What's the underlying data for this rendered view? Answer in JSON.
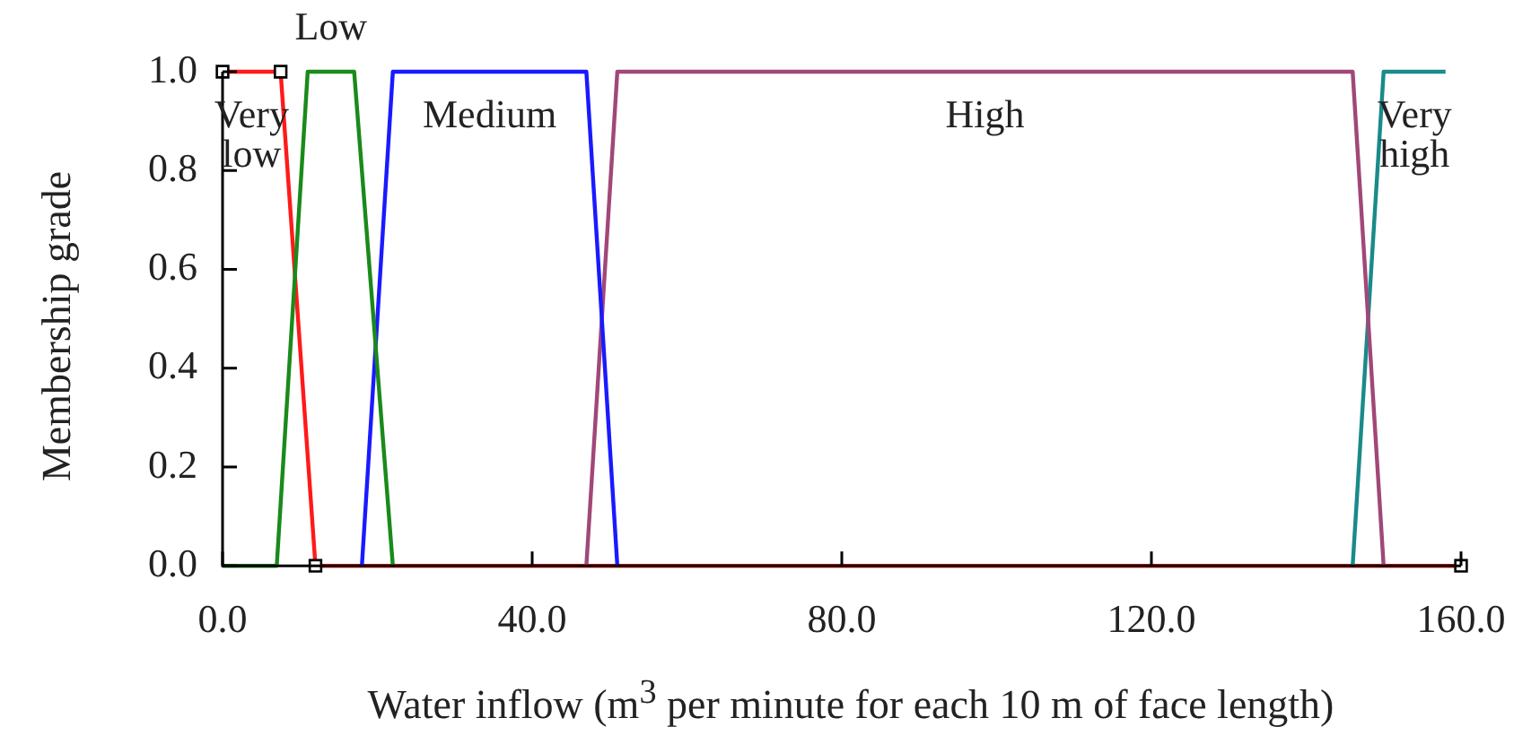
{
  "chart_data": {
    "type": "line",
    "xlabel": "Water inflow (m$^{3}$ per minute for each 10 m of face length)",
    "ylabel": "Membership grade",
    "xlim": [
      0,
      160
    ],
    "xticks": [
      {
        "value": 0,
        "label": "0.0"
      },
      {
        "value": 40,
        "label": "40.0"
      },
      {
        "value": 80,
        "label": "80.0"
      },
      {
        "value": 120,
        "label": "120.0"
      },
      {
        "value": 160,
        "label": "160.0"
      }
    ],
    "ylim": [
      0,
      1
    ],
    "yticks": [
      {
        "value": 0,
        "label": "0.0"
      },
      {
        "value": 0.2,
        "label": "0.2"
      },
      {
        "value": 0.4,
        "label": "0.4"
      },
      {
        "value": 0.6,
        "label": "0.6"
      },
      {
        "value": 0.8,
        "label": "0.8"
      },
      {
        "value": 1,
        "label": "1.0"
      }
    ],
    "grid": false,
    "legend": false,
    "line_style": "solid",
    "series": [
      {
        "name": "Low",
        "color": "#1a8a1a",
        "marker": "none",
        "x": [
          0,
          7,
          11,
          17,
          22
        ],
        "values": [
          0,
          0,
          1,
          1,
          0
        ]
      },
      {
        "name": "Medium",
        "color": "#1a1aff",
        "marker": "none",
        "x": [
          18,
          22,
          47,
          51
        ],
        "values": [
          0,
          1,
          1,
          0
        ]
      },
      {
        "name": "High",
        "color": "#a04878",
        "marker": "none",
        "x": [
          47,
          51,
          146,
          150
        ],
        "values": [
          0,
          1,
          1,
          0
        ]
      },
      {
        "name": "Very high",
        "color": "#1a8a8a",
        "marker": "none",
        "x": [
          146,
          150,
          158
        ],
        "values": [
          0,
          1,
          1
        ]
      },
      {
        "name": "Very low",
        "color": "#ff1a1a",
        "marker": "square",
        "x": [
          0,
          7.5,
          12,
          160
        ],
        "values": [
          1,
          1,
          0,
          0
        ]
      }
    ]
  }
}
